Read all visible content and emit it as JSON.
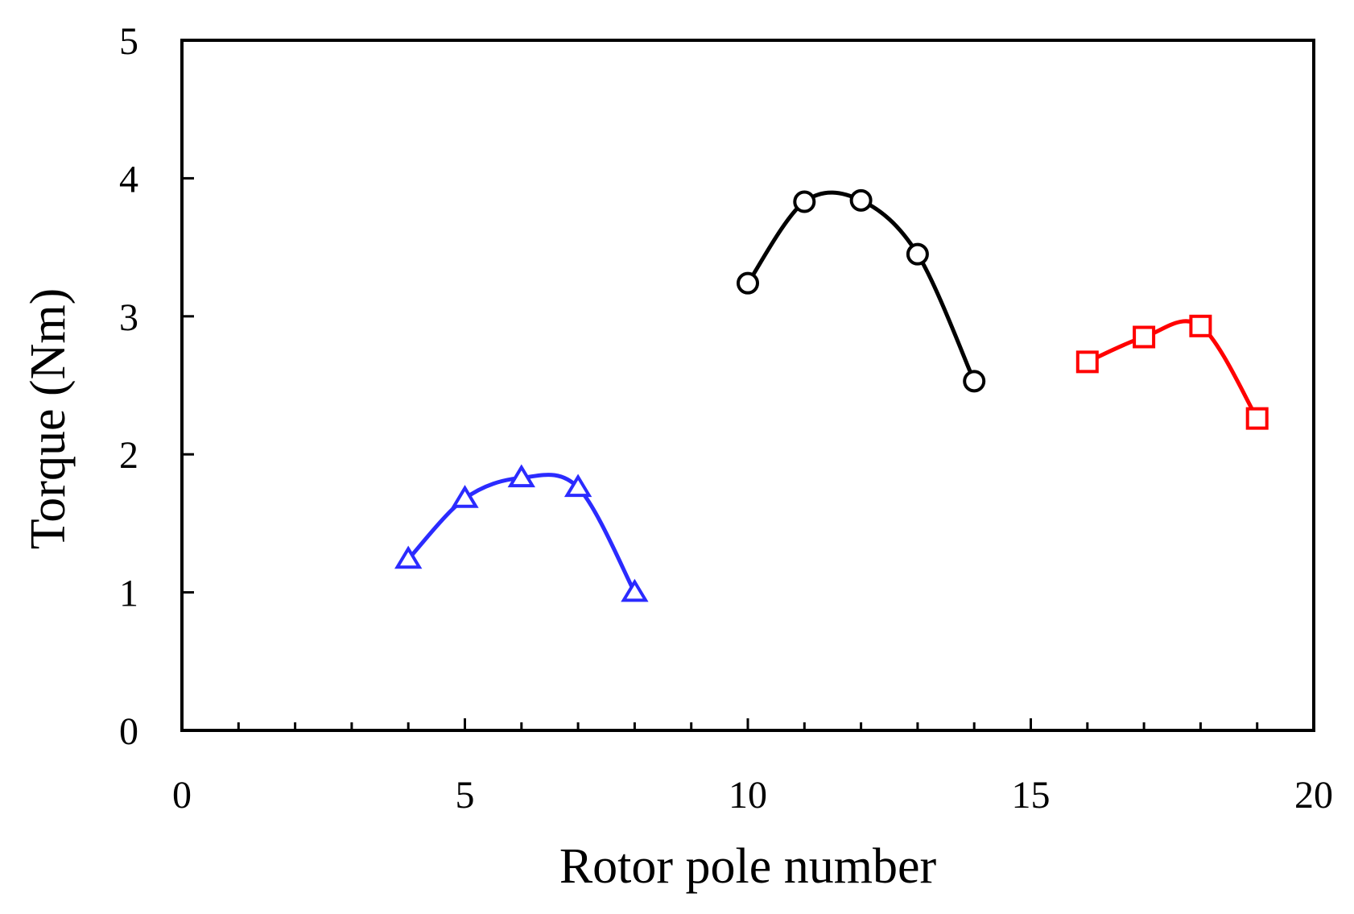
{
  "chart_data": {
    "type": "line",
    "title": "",
    "xlabel": "Rotor pole number",
    "ylabel": "Torque (Nm)",
    "xlim": [
      0,
      20
    ],
    "ylim": [
      0,
      5
    ],
    "x_major_ticks": [
      0,
      5,
      10,
      15,
      20
    ],
    "x_minor_ticks": [
      1,
      2,
      3,
      4,
      6,
      7,
      8,
      9,
      11,
      12,
      13,
      14,
      16,
      17,
      18,
      19
    ],
    "y_ticks": [
      0,
      1,
      2,
      3,
      4,
      5
    ],
    "x_tick_labels": [
      "0",
      "5",
      "10",
      "15",
      "20"
    ],
    "y_tick_labels": [
      "0",
      "1",
      "2",
      "3",
      "4",
      "5"
    ],
    "grid": false,
    "legend": "none",
    "series": [
      {
        "marker": "triangle",
        "color": "#2b2bff",
        "x": [
          4,
          5,
          6,
          7,
          8
        ],
        "y": [
          1.24,
          1.68,
          1.83,
          1.76,
          1.0
        ]
      },
      {
        "marker": "circle",
        "color": "#000000",
        "x": [
          10,
          11,
          12,
          13,
          14
        ],
        "y": [
          3.24,
          3.83,
          3.84,
          3.45,
          2.53
        ]
      },
      {
        "marker": "square",
        "color": "#ff0000",
        "x": [
          16,
          17,
          18,
          19
        ],
        "y": [
          2.67,
          2.85,
          2.93,
          2.26
        ]
      }
    ]
  }
}
